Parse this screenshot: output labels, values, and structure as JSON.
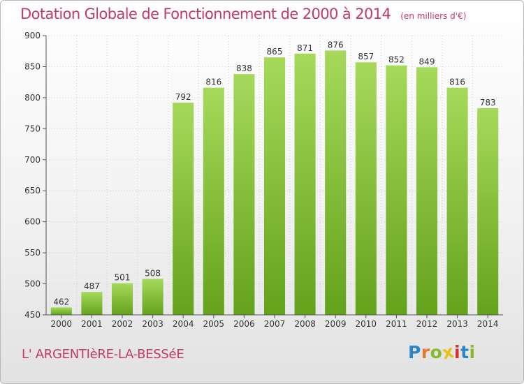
{
  "chart_data": {
    "type": "bar",
    "title": "Dotation Globale de Fonctionnement de 2000 à 2014",
    "subtitle": "(en milliers d'€)",
    "categories": [
      "2000",
      "2001",
      "2002",
      "2003",
      "2004",
      "2005",
      "2006",
      "2007",
      "2008",
      "2009",
      "2010",
      "2011",
      "2012",
      "2013",
      "2014"
    ],
    "values": [
      462,
      487,
      501,
      508,
      792,
      816,
      838,
      865,
      871,
      876,
      857,
      852,
      849,
      816,
      783
    ],
    "data_labels": [
      "462",
      "487",
      "501",
      "508",
      "792",
      "816",
      "838",
      "865",
      "871",
      "876",
      "857",
      "852",
      "849",
      "816",
      "783"
    ],
    "y_ticks": [
      450,
      500,
      550,
      600,
      650,
      700,
      750,
      800,
      850,
      900
    ],
    "y_tick_labels": [
      "450",
      "500",
      "550",
      "600",
      "650",
      "700",
      "750",
      "800",
      "850",
      "900"
    ],
    "ylim": [
      450,
      900
    ],
    "xlabel": "",
    "ylabel": "",
    "grid": true,
    "legend": "none",
    "colors": {
      "bar_light": "#a6d95a",
      "bar_dark": "#64a21c",
      "grid": "#d0d0d0",
      "axis": "#555555",
      "text": "#333333",
      "accent": "#c23a6a"
    }
  },
  "footer": {
    "commune": "L' ARGENTIèRE-LA-BESSéE",
    "logo_text": "Proxiti",
    "logo_letters": [
      {
        "ch": "P",
        "color": "#2a86c9"
      },
      {
        "ch": "r",
        "color": "#e8762b"
      },
      {
        "ch": "o",
        "color": "#87b92e"
      },
      {
        "ch": "x",
        "color": "#e8c21a"
      },
      {
        "ch": "i",
        "color": "#d6312d"
      },
      {
        "ch": "t",
        "color": "#2a86c9"
      },
      {
        "ch": "i",
        "color": "#87b92e"
      }
    ]
  }
}
